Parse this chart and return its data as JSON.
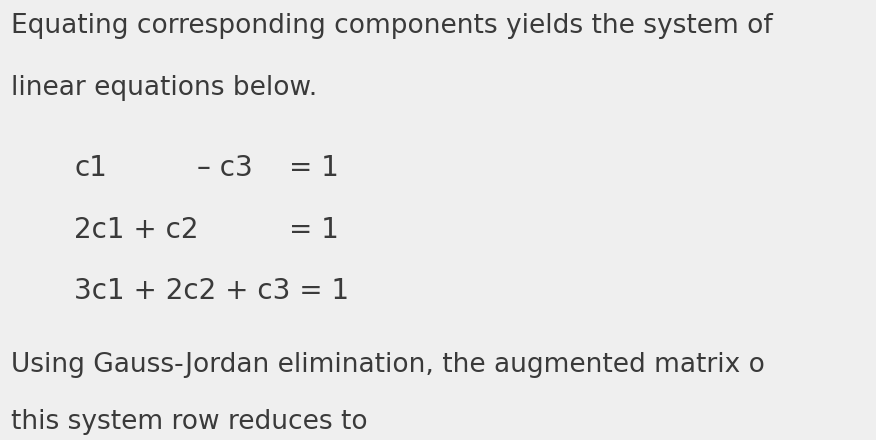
{
  "background_color": "#efefef",
  "text_color": "#3a3a3a",
  "title_line1": "Equating corresponding components yields the system of",
  "title_line2": "linear equations below.",
  "footer_line1": "Using Gauss-Jordan elimination, the augmented matrix o",
  "footer_line2": "this system row reduces to",
  "font_size_body": 19,
  "font_size_eq": 20,
  "fig_width": 8.76,
  "fig_height": 4.4,
  "dpi": 100
}
